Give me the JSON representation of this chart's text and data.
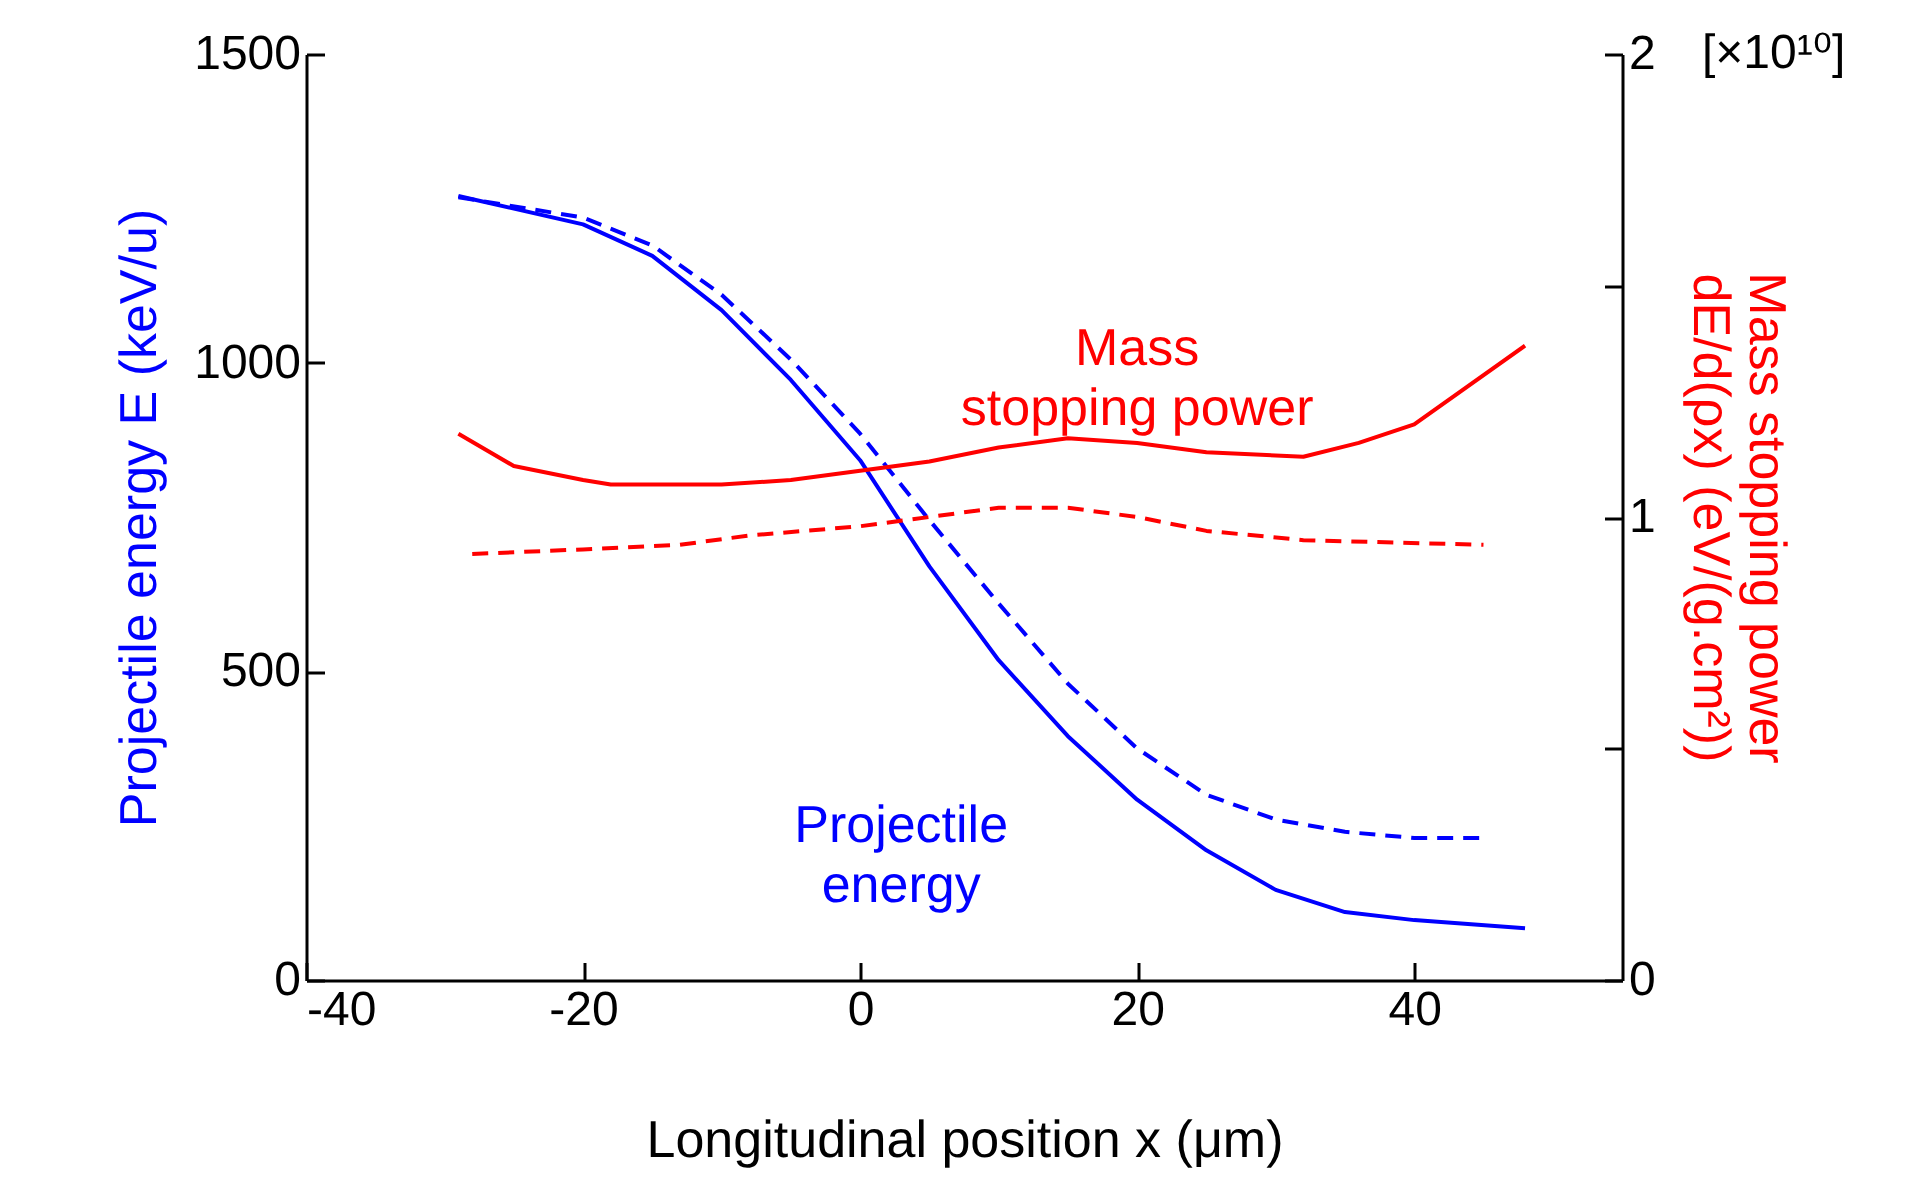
{
  "chart_data": {
    "type": "line",
    "xlabel": "Longitudinal position x (μm)",
    "ylabel": "Projectile energy E (keV/u)",
    "y2label": "Mass stopping power\ndE/d(ρx) (eV/(g.cm²))",
    "xlim": [
      -40,
      55
    ],
    "xticks": [
      -40,
      -20,
      0,
      20,
      40
    ],
    "ylim": [
      0,
      1500
    ],
    "yticks": [
      0,
      500,
      1000,
      1500
    ],
    "y2lim": [
      0,
      2
    ],
    "y2ticks": [
      0,
      {
        "value": 0.5,
        "label": null
      },
      1,
      {
        "value": 1.5,
        "label": null
      },
      2
    ],
    "grid": false,
    "annotations": [
      "[×10¹⁰]"
    ],
    "series": [
      {
        "name": "Projectile\nenergy",
        "color": "#0000ff",
        "line_style": "solid",
        "x": [
          -29,
          -20,
          -15,
          -10,
          -5,
          0,
          5,
          10,
          15,
          20,
          25,
          30,
          35,
          40,
          48
        ],
        "values": [
          1270,
          1224,
          1173,
          1085,
          972,
          842,
          670,
          518,
          395,
          292,
          210,
          146,
          110,
          97,
          84
        ]
      },
      {
        "color": "#0000ff",
        "line_style": "dashed",
        "x": [
          -29,
          -20,
          -15,
          -10,
          -5,
          0,
          5,
          10,
          15,
          20,
          25,
          30,
          35,
          40,
          45
        ],
        "values": [
          1268,
          1235,
          1190,
          1110,
          1005,
          885,
          745,
          610,
          480,
          375,
          300,
          260,
          240,
          230,
          230
        ]
      },
      {
        "name": "Mass\nstopping power",
        "color": "#ff0000",
        "line_style": "solid",
        "axis": "y2",
        "x": [
          -29,
          -25,
          -20,
          -18,
          -10,
          -5,
          0,
          5,
          10,
          15,
          20,
          25,
          32,
          36,
          40,
          48
        ],
        "values": [
          1.18,
          1.11,
          1.08,
          1.07,
          1.07,
          1.08,
          1.1,
          1.12,
          1.15,
          1.17,
          1.16,
          1.14,
          1.13,
          1.16,
          1.2,
          1.37
        ]
      },
      {
        "color": "#ff0000",
        "line_style": "dashed",
        "axis": "y2",
        "x": [
          -28,
          -20,
          -13,
          -8,
          0,
          5,
          10,
          15,
          20,
          25,
          32,
          45
        ],
        "values": [
          0.92,
          0.93,
          0.94,
          0.96,
          0.98,
          1.0,
          1.02,
          1.02,
          1.0,
          0.97,
          0.95,
          0.94
        ]
      }
    ]
  }
}
